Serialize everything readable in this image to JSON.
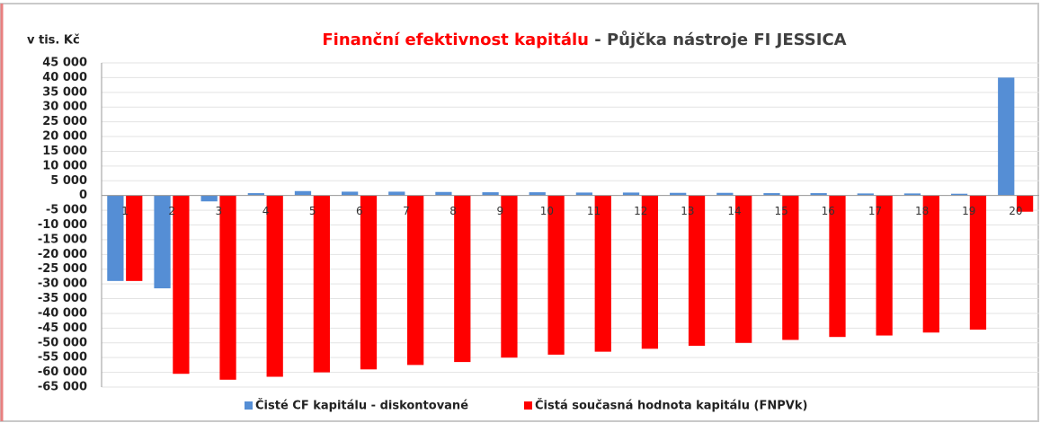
{
  "chart_data": {
    "type": "bar",
    "title": "Finanční efektivnost kapitálu",
    "subtitle": "- Půjčka nástroje FI JESSICA",
    "y_label": "v tis. Kč",
    "categories": [
      "1",
      "2",
      "3",
      "4",
      "5",
      "6",
      "7",
      "8",
      "9",
      "10",
      "11",
      "12",
      "13",
      "14",
      "15",
      "16",
      "17",
      "18",
      "19",
      "20"
    ],
    "series": [
      {
        "name": "Čisté CF kapitálu - diskontované",
        "color": "#558ed5",
        "values": [
          -29000,
          -31500,
          -2000,
          800,
          1500,
          1300,
          1300,
          1200,
          1100,
          1100,
          1000,
          1000,
          900,
          900,
          800,
          800,
          700,
          700,
          600,
          40000
        ]
      },
      {
        "name": "Čistá současná hodnota kapitálu (FNPVk)",
        "color": "#ff0000",
        "values": [
          -29000,
          -60500,
          -62500,
          -61500,
          -60000,
          -59000,
          -57500,
          -56500,
          -55000,
          -54000,
          -53000,
          -52000,
          -51000,
          -50000,
          -49000,
          -48000,
          -47500,
          -46500,
          -45500,
          -5500
        ]
      }
    ],
    "ylim": [
      -65000,
      45000
    ],
    "yticks": [
      {
        "value": -65000,
        "label": "-65 000"
      },
      {
        "value": -60000,
        "label": "-60 000"
      },
      {
        "value": -55000,
        "label": "-55 000"
      },
      {
        "value": -50000,
        "label": "-50 000"
      },
      {
        "value": -45000,
        "label": "-45 000"
      },
      {
        "value": -40000,
        "label": "-40 000"
      },
      {
        "value": -35000,
        "label": "-35 000"
      },
      {
        "value": -30000,
        "label": "-30 000"
      },
      {
        "value": -25000,
        "label": "-25 000"
      },
      {
        "value": -20000,
        "label": "-20 000"
      },
      {
        "value": -15000,
        "label": "-15 000"
      },
      {
        "value": -10000,
        "label": "-10 000"
      },
      {
        "value": -5000,
        "label": "-5 000"
      },
      0,
      {
        "value": 5000,
        "label": "5 000"
      },
      {
        "value": 10000,
        "label": "10 000"
      },
      {
        "value": 15000,
        "label": "15 000"
      },
      {
        "value": 20000,
        "label": "20 000"
      },
      {
        "value": 25000,
        "label": "25 000"
      },
      {
        "value": 30000,
        "label": "30 000"
      },
      {
        "value": 35000,
        "label": "35 000"
      },
      {
        "value": 40000,
        "label": "40 000"
      },
      {
        "value": 45000,
        "label": "45 000"
      }
    ],
    "grid": true,
    "legend": "bottom"
  }
}
